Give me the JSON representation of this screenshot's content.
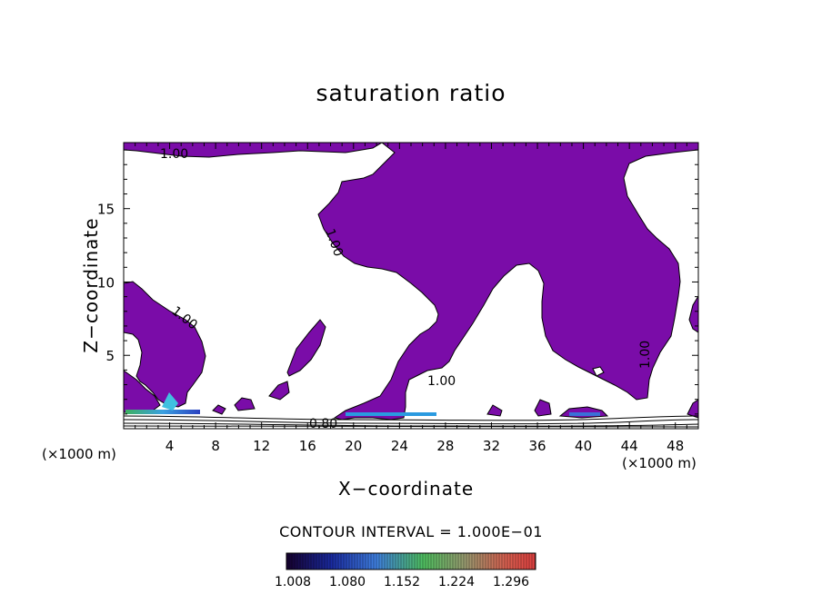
{
  "chart_data": {
    "type": "contour",
    "title": "saturation ratio",
    "xlabel": "X−coordinate",
    "ylabel": "Z−coordinate",
    "x_unit_left": "(×1000 m)",
    "x_unit_right": "(×1000 m)",
    "xlim": [
      0,
      50
    ],
    "ylim": [
      0,
      19.5
    ],
    "x_ticks": [
      "4",
      "8",
      "12",
      "16",
      "20",
      "24",
      "28",
      "32",
      "36",
      "40",
      "44",
      "48"
    ],
    "y_ticks": [
      "5",
      "10",
      "15"
    ],
    "contour_labels": [
      "1.00",
      "1.00",
      "1.00",
      "1.00",
      "1.00",
      "0.80"
    ],
    "contour_interval_text": "CONTOUR INTERVAL = 1.000E−01",
    "colorbar_labels": [
      "1.008",
      "1.080",
      "1.152",
      "1.224",
      "1.296"
    ],
    "fill_color": "#7a0ca8"
  }
}
